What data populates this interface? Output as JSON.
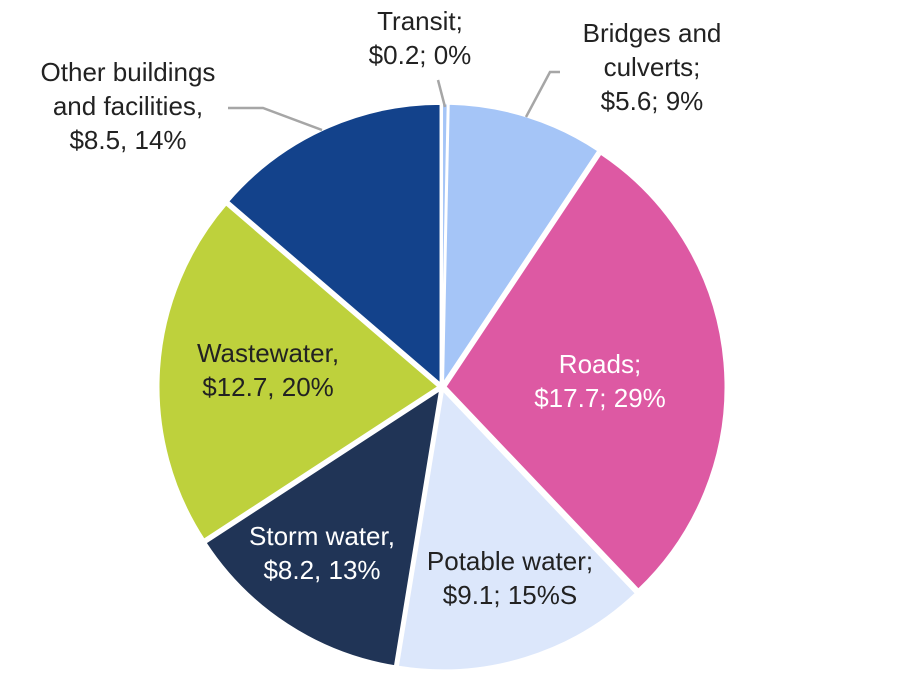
{
  "chart_data": {
    "type": "pie",
    "title": "",
    "start_angle_deg": 0,
    "direction": "clockwise",
    "slices": [
      {
        "label": [
          "Transit;",
          "$0.2; 0%"
        ],
        "value": 0.2,
        "color": "#A5C5F7",
        "label_color": "#222222",
        "label_placement": "outside"
      },
      {
        "label": [
          "Bridges and",
          "culverts;",
          "$5.6; 9%"
        ],
        "value": 5.6,
        "color": "#A5C5F7",
        "label_color": "#222222",
        "label_placement": "outside"
      },
      {
        "label": [
          "Roads;",
          "$17.7; 29%"
        ],
        "value": 17.7,
        "color": "#DD59A3",
        "label_color": "#ffffff",
        "label_placement": "inside"
      },
      {
        "label": [
          "Potable water;",
          "$9.1; 15%S"
        ],
        "value": 9.1,
        "color": "#DCE7FB",
        "label_color": "#222222",
        "label_placement": "inside"
      },
      {
        "label": [
          "Storm water,",
          "$8.2, 13%"
        ],
        "value": 8.2,
        "color": "#203456",
        "label_color": "#ffffff",
        "label_placement": "inside"
      },
      {
        "label": [
          "Wastewater,",
          "$12.7, 20%"
        ],
        "value": 12.7,
        "color": "#BED13C",
        "label_color": "#222222",
        "label_placement": "inside"
      },
      {
        "label": [
          "Other buildings",
          "and facilities,",
          "$8.5, 14%"
        ],
        "value": 8.5,
        "color": "#13428B",
        "label_color": "#222222",
        "label_placement": "outside"
      }
    ]
  }
}
